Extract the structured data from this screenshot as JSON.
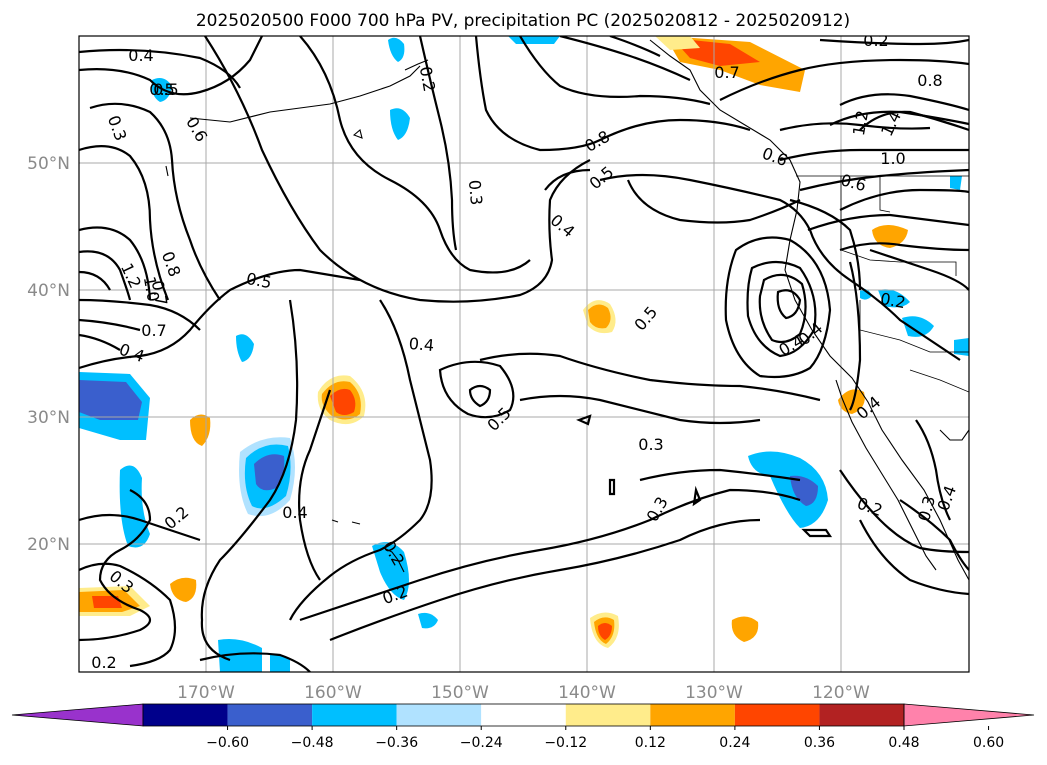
{
  "title": "2025020500 F000 700 hPa PV, precipitation PC (2025020812 - 2025020912)",
  "axes": {
    "lon_labels": [
      "170°W",
      "160°W",
      "150°W",
      "140°W",
      "130°W",
      "120°W"
    ],
    "lat_labels": [
      "50°N",
      "40°N",
      "30°N",
      "20°N"
    ]
  },
  "colorbar": {
    "ticks": [
      "−0.60",
      "−0.48",
      "−0.36",
      "−0.24",
      "−0.12",
      "0.12",
      "0.24",
      "0.36",
      "0.48",
      "0.60"
    ],
    "colors": [
      "#9932cc",
      "#00008b",
      "#3a5fcd",
      "#00bfff",
      "#b0e2ff",
      "#ffffff",
      "#ffec8b",
      "#ffa500",
      "#ff4500",
      "#b22222",
      "#ff82ab"
    ]
  },
  "contour_labels": [
    "0.4",
    "0.5",
    "0.6",
    "1.2",
    "0.8",
    "0.7",
    "1.0",
    "0.7",
    "0.4",
    "0.5",
    "0.3",
    "0.4",
    "0.5",
    "0.4",
    "0.5",
    "0.3",
    "0.3",
    "0.2",
    "0.4",
    "0.2",
    "0.3",
    "0.2",
    "0.2",
    "0.5",
    "0.8",
    "0.5",
    "0.7",
    "0.8",
    "1.4",
    "1.2",
    "1.0",
    "0.6",
    "0.6",
    "0.2",
    "0.4",
    "0.2",
    "0.3",
    "0.4",
    "0.4",
    "0.2",
    "0.3",
    "0.2",
    "0.4"
  ]
}
